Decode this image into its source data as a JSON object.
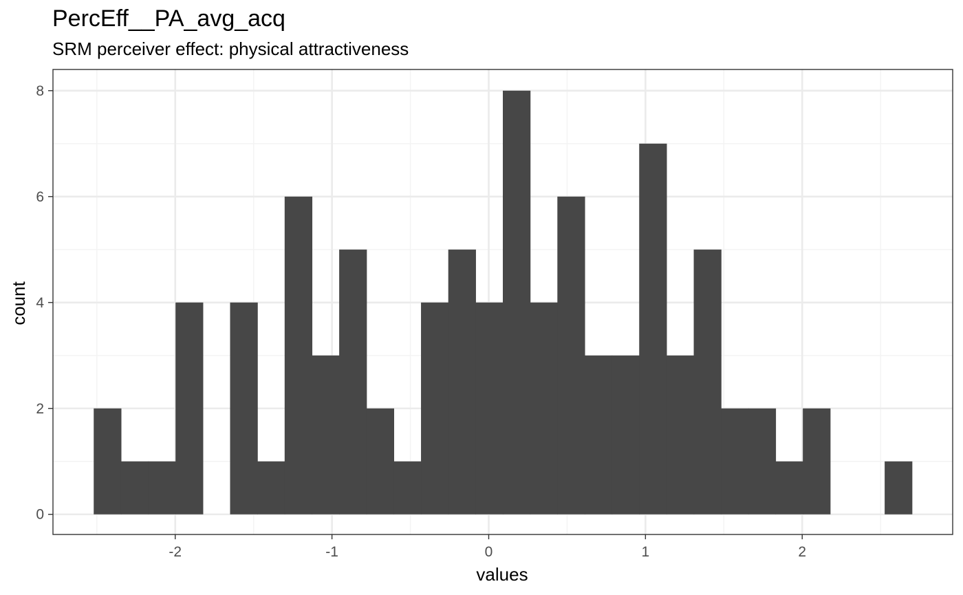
{
  "chart_data": {
    "type": "bar",
    "title": "PercEff__PA_avg_acq",
    "subtitle": "SRM perceiver effect: physical attractiveness",
    "xlabel": "values",
    "ylabel": "count",
    "bin_width": 0.174,
    "bins": [
      {
        "x0": -2.52,
        "x1": -2.346,
        "count": 2
      },
      {
        "x0": -2.346,
        "x1": -2.172,
        "count": 1
      },
      {
        "x0": -2.172,
        "x1": -1.998,
        "count": 1
      },
      {
        "x0": -1.998,
        "x1": -1.824,
        "count": 4
      },
      {
        "x0": -1.824,
        "x1": -1.65,
        "count": 0
      },
      {
        "x0": -1.65,
        "x1": -1.476,
        "count": 4
      },
      {
        "x0": -1.476,
        "x1": -1.302,
        "count": 1
      },
      {
        "x0": -1.302,
        "x1": -1.128,
        "count": 6
      },
      {
        "x0": -1.128,
        "x1": -0.954,
        "count": 3
      },
      {
        "x0": -0.954,
        "x1": -0.78,
        "count": 5
      },
      {
        "x0": -0.78,
        "x1": -0.606,
        "count": 2
      },
      {
        "x0": -0.606,
        "x1": -0.432,
        "count": 1
      },
      {
        "x0": -0.432,
        "x1": -0.258,
        "count": 4
      },
      {
        "x0": -0.258,
        "x1": -0.084,
        "count": 5
      },
      {
        "x0": -0.084,
        "x1": 0.09,
        "count": 4
      },
      {
        "x0": 0.09,
        "x1": 0.264,
        "count": 8
      },
      {
        "x0": 0.264,
        "x1": 0.438,
        "count": 4
      },
      {
        "x0": 0.438,
        "x1": 0.612,
        "count": 6
      },
      {
        "x0": 0.612,
        "x1": 0.786,
        "count": 3
      },
      {
        "x0": 0.786,
        "x1": 0.96,
        "count": 3
      },
      {
        "x0": 0.96,
        "x1": 1.134,
        "count": 7
      },
      {
        "x0": 1.134,
        "x1": 1.308,
        "count": 3
      },
      {
        "x0": 1.308,
        "x1": 1.482,
        "count": 5
      },
      {
        "x0": 1.482,
        "x1": 1.656,
        "count": 2
      },
      {
        "x0": 1.656,
        "x1": 1.83,
        "count": 2
      },
      {
        "x0": 1.83,
        "x1": 2.004,
        "count": 1
      },
      {
        "x0": 2.004,
        "x1": 2.178,
        "count": 2
      },
      {
        "x0": 2.178,
        "x1": 2.352,
        "count": 0
      },
      {
        "x0": 2.352,
        "x1": 2.526,
        "count": 0
      },
      {
        "x0": 2.526,
        "x1": 2.7,
        "count": 1
      }
    ],
    "xlim": [
      -2.78,
      2.96
    ],
    "ylim": [
      -0.38,
      8.4
    ],
    "x_ticks": [
      -2,
      -1,
      0,
      1,
      2
    ],
    "x_tick_labels": [
      "-2",
      "-1",
      "0",
      "1",
      "2"
    ],
    "y_ticks": [
      0,
      2,
      4,
      6,
      8
    ],
    "y_tick_labels": [
      "0",
      "2",
      "4",
      "6",
      "8"
    ],
    "grid": true,
    "legend": "none",
    "colors": {
      "bar": "#474747",
      "grid_major": "#ebebeb",
      "grid_minor": "#f3f3f3",
      "panel_border": "#333333",
      "tick_text": "#4d4d4d"
    }
  }
}
